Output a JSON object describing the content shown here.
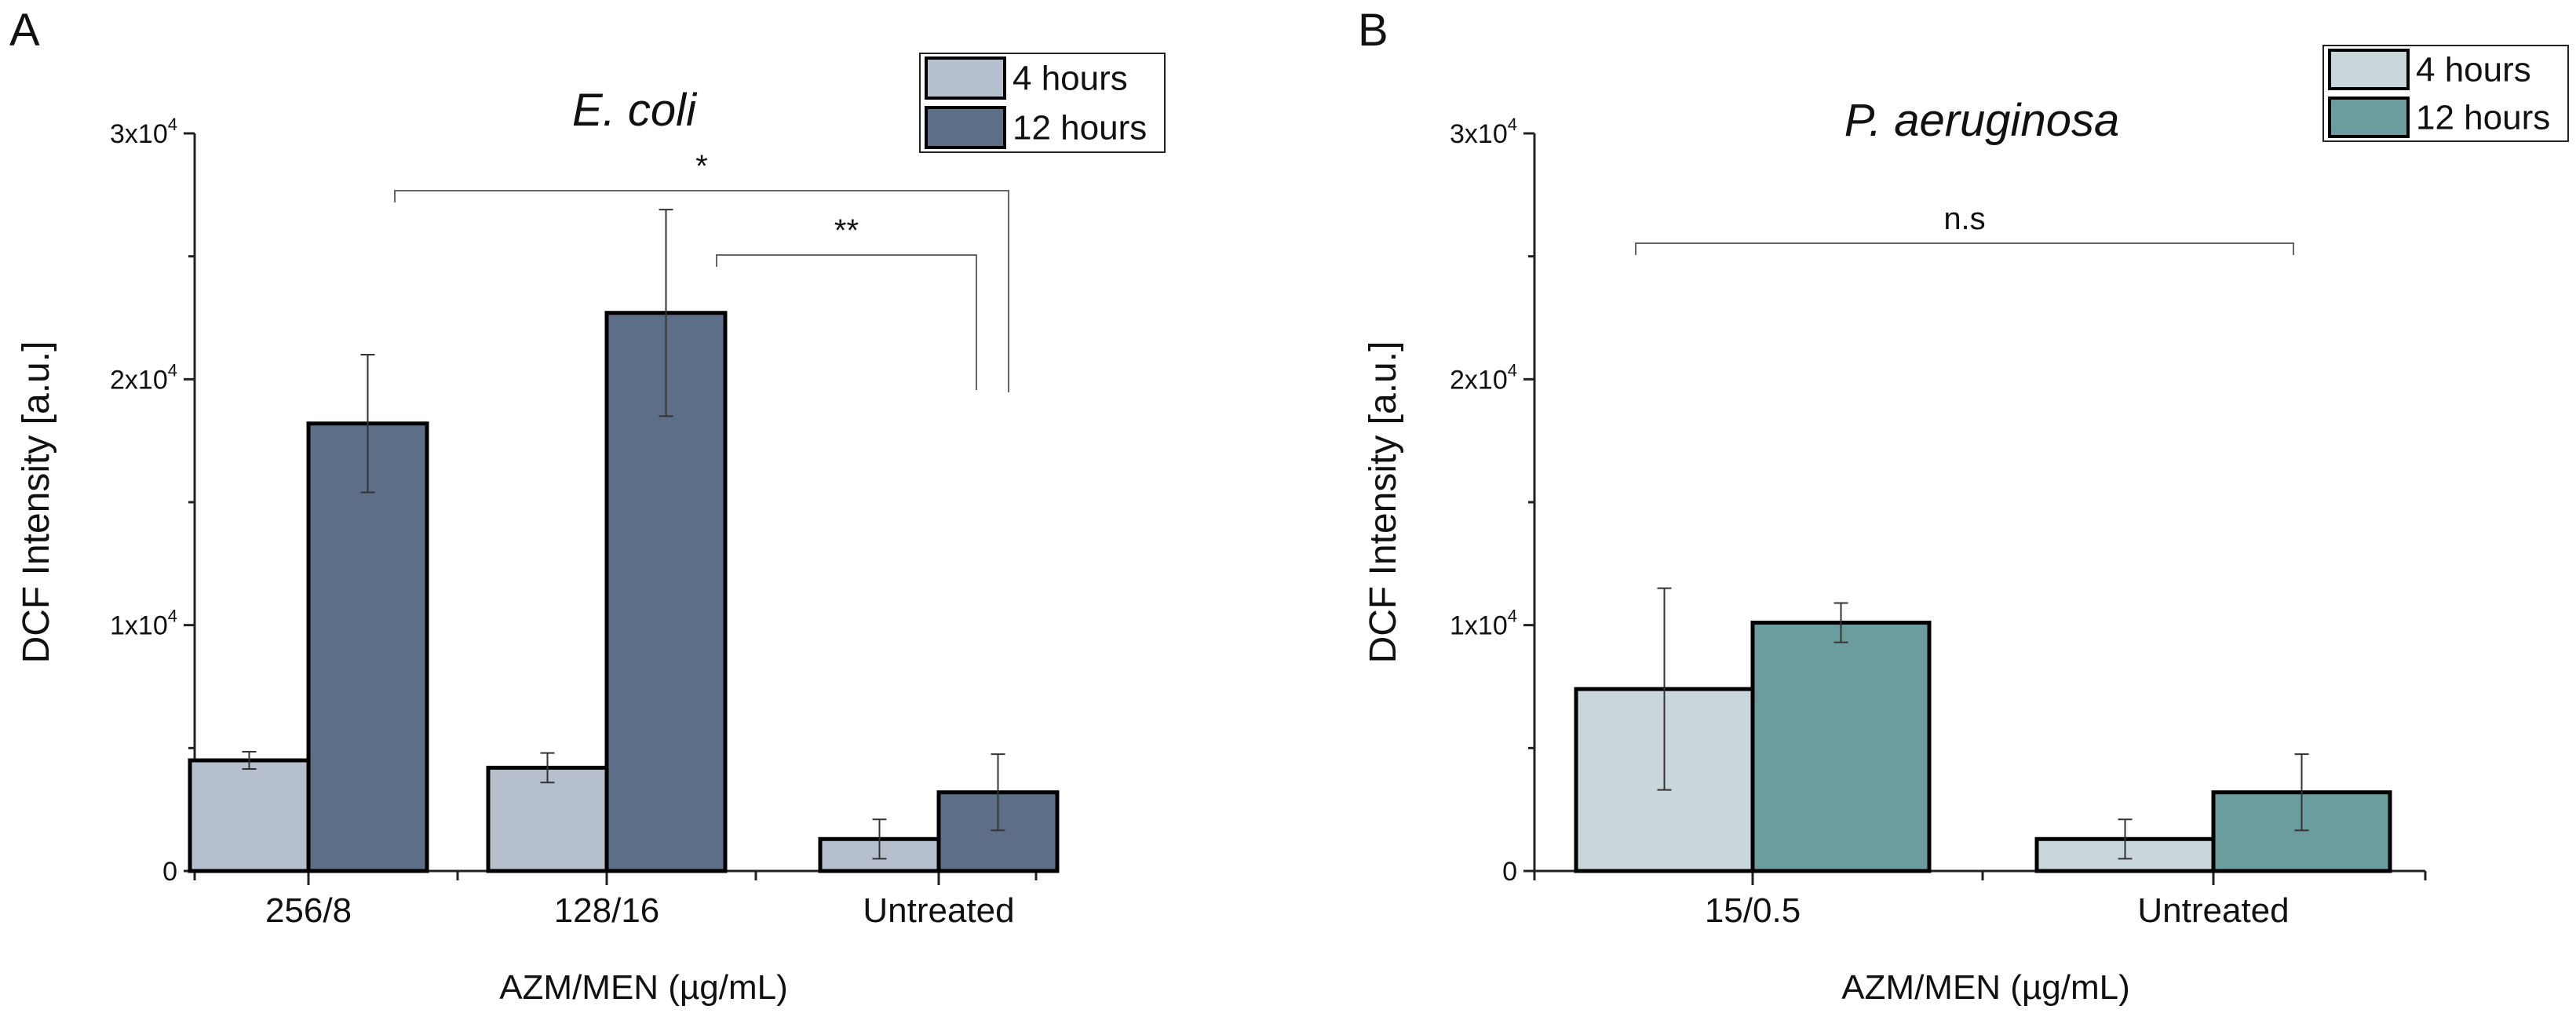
{
  "chart_data": [
    {
      "panel": "A",
      "type": "bar",
      "title": "E. coli",
      "xlabel": "AZM/MEN (µg/mL)",
      "ylabel": "DCF Intensity [a.u.]",
      "ylim": [
        0,
        30000
      ],
      "yticks": [
        {
          "value": 0,
          "base": "0",
          "exp": ""
        },
        {
          "value": 10000,
          "base": "1x10",
          "exp": "4"
        },
        {
          "value": 20000,
          "base": "2x10",
          "exp": "4"
        },
        {
          "value": 30000,
          "base": "3x10",
          "exp": "4"
        }
      ],
      "categories": [
        "256/8",
        "128/16",
        "Untreated"
      ],
      "series": [
        {
          "name": "4 hours",
          "color": "#b5c0cc",
          "values": [
            4500,
            4200,
            1300
          ],
          "errors": [
            350,
            600,
            800
          ]
        },
        {
          "name": "12 hours",
          "color": "#5c6f87",
          "values": [
            18200,
            22700,
            3200
          ],
          "errors": [
            2800,
            4200,
            1550
          ]
        }
      ],
      "legend": "top-right",
      "annotations": [
        {
          "label": "*",
          "from_category": 0,
          "to_category": 2,
          "level": 27600
        },
        {
          "label": "**",
          "from_category": 1,
          "to_category": 2,
          "level": 25000
        }
      ]
    },
    {
      "panel": "B",
      "type": "bar",
      "title": "P. aeruginosa",
      "xlabel": "AZM/MEN (µg/mL)",
      "ylabel": "DCF Intensity [a.u.]",
      "ylim": [
        0,
        30000
      ],
      "yticks": [
        {
          "value": 0,
          "base": "0",
          "exp": ""
        },
        {
          "value": 10000,
          "base": "1x10",
          "exp": "4"
        },
        {
          "value": 20000,
          "base": "2x10",
          "exp": "4"
        },
        {
          "value": 30000,
          "base": "3x10",
          "exp": "4"
        }
      ],
      "categories": [
        "15/0.5",
        "Untreated"
      ],
      "series": [
        {
          "name": "4 hours",
          "color": "#c9d7db",
          "values": [
            7400,
            1300
          ],
          "errors": [
            4100,
            800
          ]
        },
        {
          "name": "12 hours",
          "color": "#6b9d9f",
          "values": [
            10100,
            3200
          ],
          "errors": [
            800,
            1550
          ]
        }
      ],
      "legend": "top-right",
      "annotations": [
        {
          "label": "n.s",
          "from_category": 0,
          "to_category": 1,
          "level": 25500
        }
      ]
    }
  ]
}
